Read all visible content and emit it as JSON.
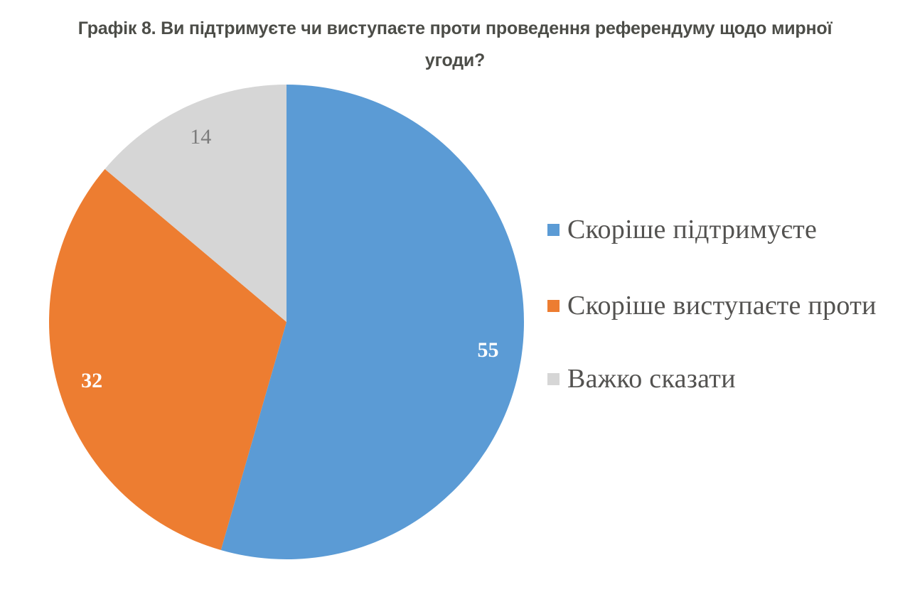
{
  "title": {
    "text": "Графік 8. Ви підтримуєте чи виступаєте проти проведення референдуму щодо мирної угоди?",
    "lines": [
      "Графік 8. Ви підтримуєте чи виступаєте проти проведення референдуму щодо мирної",
      "угоди?"
    ]
  },
  "chart_data": {
    "type": "pie",
    "title": "Графік 8. Ви підтримуєте чи виступаєте проти проведення референдуму щодо мирної угоди?",
    "unit": "percent",
    "start_angle": "12-oclock",
    "direction": "clockwise",
    "legend_position": "right",
    "slices": [
      {
        "label": "Скоріше підтримуєте",
        "value": 55,
        "color": "#5B9BD5",
        "value_label_color": "#FFFFFF",
        "value_label_bold": true
      },
      {
        "label": "Скоріше виступаєте проти",
        "value": 32,
        "color": "#ED7D31",
        "value_label_color": "#FFFFFF",
        "value_label_bold": true
      },
      {
        "label": "Важко сказати",
        "value": 14,
        "color": "#D6D6D6",
        "value_label_color": "#7C7C7C",
        "value_label_bold": false
      }
    ]
  }
}
